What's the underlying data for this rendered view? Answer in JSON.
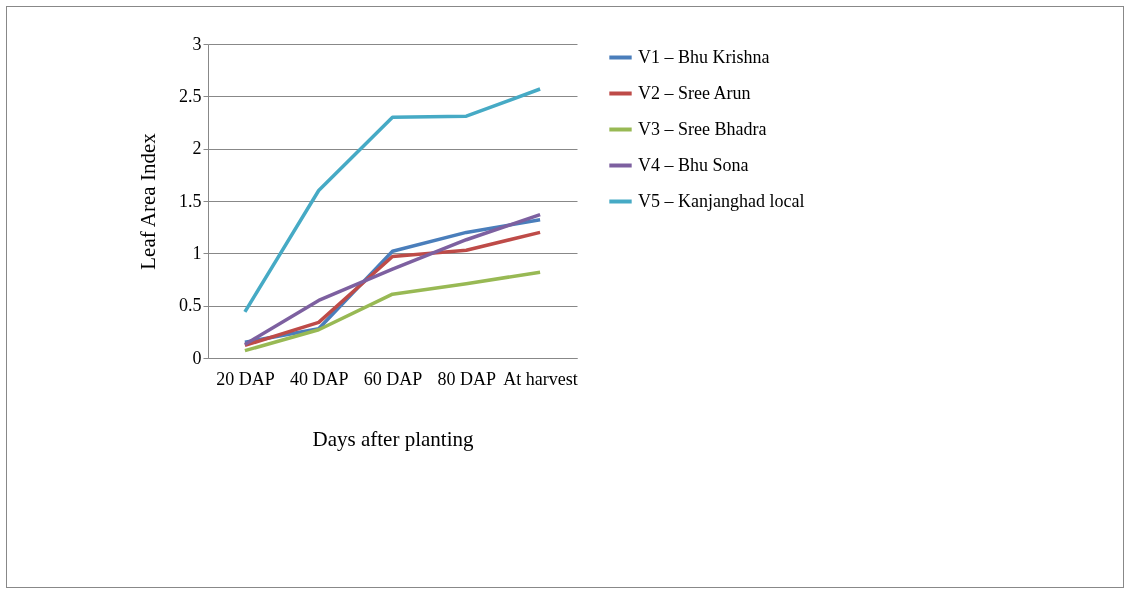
{
  "chart_data": {
    "type": "line",
    "xlabel": "Days after planting",
    "ylabel": "Leaf Area Index",
    "categories": [
      "20 DAP",
      "40 DAP",
      "60 DAP",
      "80 DAP",
      "At harvest"
    ],
    "series": [
      {
        "name": "V1 – Bhu Krishna",
        "color": "#4a7ebb",
        "values": [
          0.15,
          0.28,
          1.02,
          1.2,
          1.32
        ]
      },
      {
        "name": "V2 – Sree Arun",
        "color": "#be4b48",
        "values": [
          0.12,
          0.34,
          0.97,
          1.03,
          1.2
        ]
      },
      {
        "name": "V3 – Sree Bhadra",
        "color": "#98b954",
        "values": [
          0.07,
          0.27,
          0.61,
          0.71,
          0.82
        ]
      },
      {
        "name": "V4 – Bhu Sona",
        "color": "#7d60a0",
        "values": [
          0.13,
          0.55,
          0.85,
          1.13,
          1.37
        ]
      },
      {
        "name": "V5 – Kanjanghad local",
        "color": "#46aac5",
        "values": [
          0.44,
          1.6,
          2.3,
          2.31,
          2.57
        ]
      }
    ],
    "ylim": [
      0,
      3
    ],
    "yticks": [
      0,
      0.5,
      1,
      1.5,
      2,
      2.5,
      3
    ],
    "grid": "y",
    "legend": "right",
    "marker": "none",
    "line_style": "solid"
  }
}
